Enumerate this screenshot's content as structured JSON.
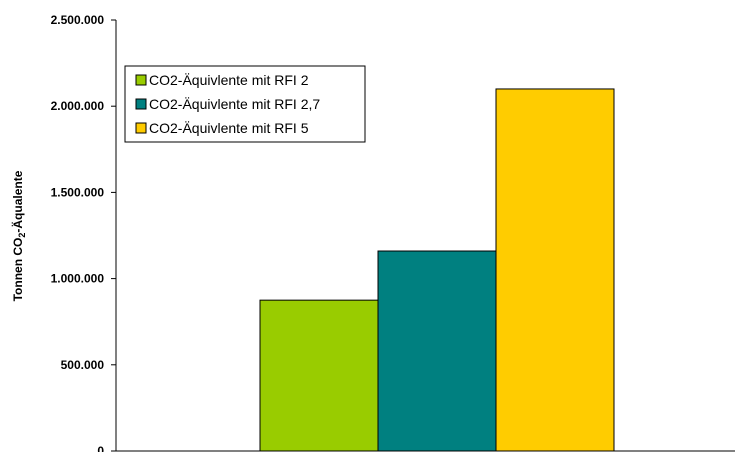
{
  "chart_data": {
    "type": "bar",
    "title": "",
    "xlabel": "",
    "ylabel": "Tonnen CO",
    "ylabel_subscript": "2",
    "ylabel_suffix": "-Äqualente",
    "ylim": [
      0,
      2500000
    ],
    "yticks": [
      0,
      500000,
      1000000,
      1500000,
      2000000,
      2500000
    ],
    "ytick_labels": [
      "0",
      "500.000",
      "1.000.000",
      "1.500.000",
      "2.000.000",
      "2.500.000"
    ],
    "grid": false,
    "legend_position": "top-left",
    "series": [
      {
        "name": "CO2-Äquivlente mit RFI 2",
        "value": 875000,
        "color": "#99cc00"
      },
      {
        "name": "CO2-Äquivlente mit RFI 2,7",
        "value": 1160000,
        "color": "#008080"
      },
      {
        "name": "CO2-Äquivlente mit RFI 5",
        "value": 2100000,
        "color": "#ffcc00"
      }
    ]
  }
}
